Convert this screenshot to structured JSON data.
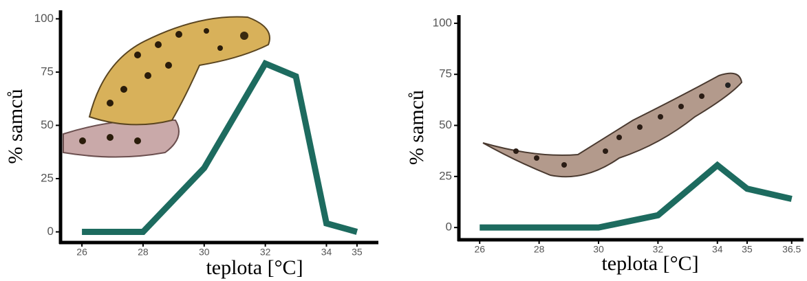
{
  "chart_data": [
    {
      "type": "line",
      "xlabel": "teplota [°C]",
      "ylabel": "% samců",
      "x": [
        26,
        28,
        30,
        32,
        33,
        34,
        35
      ],
      "values": [
        0,
        0,
        30,
        79,
        73,
        4,
        0
      ],
      "color": "#1d6b5f",
      "xlim": [
        25.3,
        35.7
      ],
      "ylim": [
        -5,
        104
      ],
      "xticks": [
        26,
        28,
        30,
        32,
        34,
        35
      ],
      "yticks": [
        0,
        25,
        50,
        75,
        100
      ]
    },
    {
      "type": "line",
      "xlabel": "teplota [°C]",
      "ylabel": "% samců",
      "x": [
        26,
        28,
        30,
        32,
        34,
        35,
        36.5
      ],
      "values": [
        0,
        0,
        0,
        6,
        30.5,
        19,
        14
      ],
      "color": "#1d6b5f",
      "xlim": [
        25.3,
        36.9
      ],
      "ylim": [
        -6,
        104
      ],
      "xticks": [
        26,
        28,
        30,
        32,
        34,
        35,
        36.5
      ],
      "yticks": [
        0,
        25,
        50,
        75,
        100
      ]
    }
  ]
}
